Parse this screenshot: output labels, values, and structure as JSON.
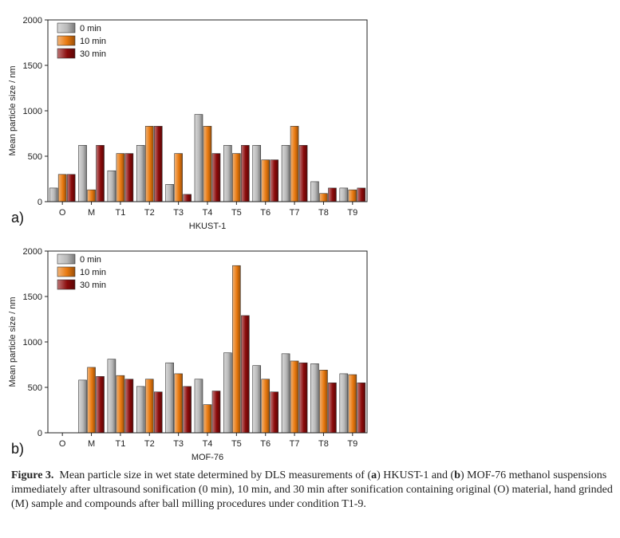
{
  "chart_data": [
    {
      "type": "bar",
      "panel_label": "a)",
      "xlabel": "HKUST-1",
      "ylabel": "Mean particle size / nm",
      "ylim": [
        0,
        2000
      ],
      "yticks": [
        0,
        500,
        1000,
        1500,
        2000
      ],
      "categories": [
        "O",
        "M",
        "T1",
        "T2",
        "T3",
        "T4",
        "T5",
        "T6",
        "T7",
        "T8",
        "T9"
      ],
      "legend_position": "top-left",
      "series": [
        {
          "name": "0 min",
          "color": "#b9b9b9",
          "values": [
            150,
            620,
            340,
            620,
            190,
            960,
            620,
            620,
            620,
            220,
            150
          ]
        },
        {
          "name": "10 min",
          "color": "#e8780e",
          "values": [
            300,
            130,
            530,
            830,
            530,
            830,
            530,
            460,
            830,
            90,
            130
          ]
        },
        {
          "name": "30 min",
          "color": "#8b0a0a",
          "values": [
            300,
            620,
            530,
            830,
            80,
            530,
            620,
            460,
            620,
            150,
            150
          ]
        }
      ]
    },
    {
      "type": "bar",
      "panel_label": "b)",
      "xlabel": "MOF-76",
      "ylabel": "Mean particle size / nm",
      "ylim": [
        0,
        2000
      ],
      "yticks": [
        0,
        500,
        1000,
        1500,
        2000
      ],
      "categories": [
        "O",
        "M",
        "T1",
        "T2",
        "T3",
        "T4",
        "T5",
        "T6",
        "T7",
        "T8",
        "T9"
      ],
      "legend_position": "top-left",
      "series": [
        {
          "name": "0 min",
          "color": "#b9b9b9",
          "values": [
            0,
            580,
            810,
            510,
            770,
            590,
            880,
            740,
            870,
            760,
            650
          ]
        },
        {
          "name": "10 min",
          "color": "#e8780e",
          "values": [
            0,
            720,
            630,
            590,
            650,
            310,
            1840,
            590,
            790,
            690,
            640
          ]
        },
        {
          "name": "30 min",
          "color": "#8b0a0a",
          "values": [
            0,
            620,
            590,
            450,
            510,
            460,
            1290,
            450,
            770,
            550,
            550
          ]
        }
      ]
    }
  ],
  "caption": {
    "label": "Figure 3.",
    "parts": [
      "Mean particle size in wet state determined by DLS measurements of (",
      "a",
      ") HKUST-1 and (",
      "b",
      ") MOF-76 methanol suspensions immediately after ultrasound sonification (0 min), 10 min, and 30 min after sonification containing original (O) material, hand grinded (M) sample and compounds after ball milling procedures under condition T1-9."
    ]
  }
}
